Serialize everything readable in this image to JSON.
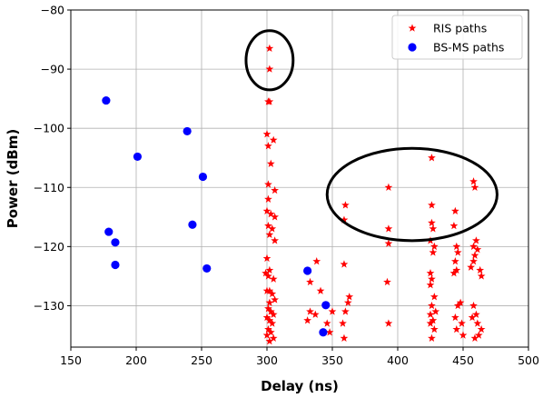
{
  "chart_data": {
    "type": "scatter",
    "xlabel": "Delay (ns)",
    "ylabel": "Power (dBm)",
    "xlim": [
      150,
      500
    ],
    "ylim": [
      -137,
      -80
    ],
    "xticks": [
      150,
      200,
      250,
      300,
      350,
      400,
      450,
      500
    ],
    "yticks": [
      -130,
      -120,
      -110,
      -100,
      -90,
      -80
    ],
    "xtick_labels": [
      "150",
      "200",
      "250",
      "300",
      "350",
      "400",
      "450",
      "500"
    ],
    "ytick_labels": [
      "−130",
      "−120",
      "−110",
      "−100",
      "−90",
      "−80"
    ],
    "grid": true,
    "legend_position": "top-right",
    "series": [
      {
        "name": "RIS paths",
        "marker": "star",
        "color": "#ff0000",
        "points": [
          [
            302,
            -86.5
          ],
          [
            302,
            -90
          ],
          [
            301,
            -95.5
          ],
          [
            302,
            -95.5
          ],
          [
            300,
            -101
          ],
          [
            305,
            -102
          ],
          [
            301,
            -103
          ],
          [
            303,
            -106
          ],
          [
            301,
            -109.5
          ],
          [
            306,
            -110.5
          ],
          [
            301,
            -112
          ],
          [
            300,
            -114
          ],
          [
            303,
            -114.5
          ],
          [
            306,
            -115
          ],
          [
            301,
            -116.5
          ],
          [
            304,
            -117
          ],
          [
            302,
            -118
          ],
          [
            306,
            -119
          ],
          [
            300,
            -122
          ],
          [
            302,
            -124
          ],
          [
            299,
            -124.5
          ],
          [
            301,
            -125
          ],
          [
            305,
            -125.5
          ],
          [
            300,
            -127.5
          ],
          [
            302,
            -127.5
          ],
          [
            304,
            -128
          ],
          [
            306,
            -129
          ],
          [
            302,
            -129.5
          ],
          [
            301,
            -130.5
          ],
          [
            303,
            -131
          ],
          [
            305,
            -131.5
          ],
          [
            300,
            -132
          ],
          [
            302,
            -132.5
          ],
          [
            304,
            -133
          ],
          [
            301,
            -134
          ],
          [
            303,
            -134.5
          ],
          [
            300,
            -135
          ],
          [
            305,
            -135.5
          ],
          [
            302,
            -136
          ],
          [
            338,
            -122.5
          ],
          [
            333,
            -126
          ],
          [
            341,
            -127.5
          ],
          [
            333,
            -131
          ],
          [
            337,
            -131.5
          ],
          [
            331,
            -132.5
          ],
          [
            346,
            -133
          ],
          [
            350,
            -131
          ],
          [
            348,
            -134.5
          ],
          [
            360,
            -113
          ],
          [
            359,
            -115.5
          ],
          [
            359,
            -123
          ],
          [
            363,
            -128.5
          ],
          [
            362,
            -129.5
          ],
          [
            360,
            -131
          ],
          [
            358,
            -133
          ],
          [
            359,
            -135.5
          ],
          [
            393,
            -110
          ],
          [
            393,
            -117
          ],
          [
            393,
            -119.5
          ],
          [
            392,
            -126
          ],
          [
            393,
            -133
          ],
          [
            426,
            -105
          ],
          [
            426,
            -113
          ],
          [
            426,
            -116
          ],
          [
            427,
            -117
          ],
          [
            425,
            -119
          ],
          [
            428,
            -120
          ],
          [
            427,
            -121
          ],
          [
            425,
            -124.5
          ],
          [
            426,
            -125.5
          ],
          [
            425,
            -126.5
          ],
          [
            428,
            -128.5
          ],
          [
            426,
            -130
          ],
          [
            429,
            -131
          ],
          [
            425,
            -131.5
          ],
          [
            427,
            -132.5
          ],
          [
            425,
            -133
          ],
          [
            428,
            -134
          ],
          [
            426,
            -135.5
          ],
          [
            444,
            -114
          ],
          [
            443,
            -116.5
          ],
          [
            445,
            -120
          ],
          [
            446,
            -121
          ],
          [
            444,
            -122.5
          ],
          [
            445,
            -124
          ],
          [
            443,
            -124.5
          ],
          [
            448,
            -129.5
          ],
          [
            446,
            -130
          ],
          [
            444,
            -132
          ],
          [
            449,
            -133
          ],
          [
            445,
            -134
          ],
          [
            450,
            -135
          ],
          [
            458,
            -109
          ],
          [
            459,
            -110
          ],
          [
            460,
            -119
          ],
          [
            458,
            -120
          ],
          [
            461,
            -120.5
          ],
          [
            459,
            -121.5
          ],
          [
            458,
            -122.5
          ],
          [
            456,
            -123.5
          ],
          [
            463,
            -124
          ],
          [
            464,
            -125
          ],
          [
            458,
            -130
          ],
          [
            460,
            -131.5
          ],
          [
            457,
            -132
          ],
          [
            461,
            -133
          ],
          [
            464,
            -134
          ],
          [
            462,
            -135
          ],
          [
            459,
            -135.5
          ]
        ]
      },
      {
        "name": "BS-MS paths",
        "marker": "circle",
        "color": "#0000ff",
        "points": [
          [
            177,
            -95.3
          ],
          [
            239,
            -100.5
          ],
          [
            201,
            -104.8
          ],
          [
            251,
            -108.2
          ],
          [
            243,
            -116.3
          ],
          [
            179,
            -117.5
          ],
          [
            184,
            -119.3
          ],
          [
            184,
            -123.1
          ],
          [
            254,
            -123.7
          ],
          [
            331,
            -124.1
          ],
          [
            345,
            -129.9
          ],
          [
            343,
            -134.5
          ]
        ]
      }
    ],
    "annotations": [
      {
        "shape": "ellipse",
        "cx": 302,
        "cy": -88.5,
        "rx": 18,
        "ry": 5
      },
      {
        "shape": "ellipse",
        "cx": 411,
        "cy": -111.2,
        "rx": 65,
        "ry": 7.8
      }
    ]
  }
}
